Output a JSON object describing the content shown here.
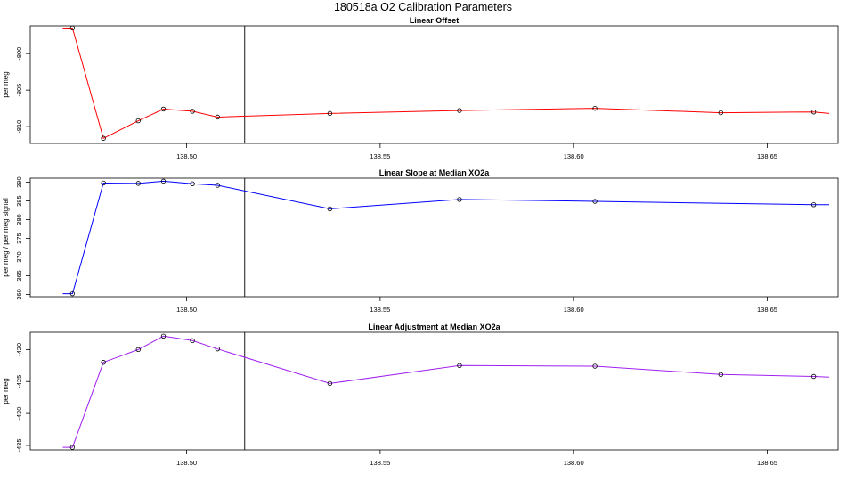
{
  "title": "180518a   O2 Calibration Parameters",
  "chart_data": [
    {
      "type": "line",
      "title": "Linear Offset",
      "ylabel": "per meg",
      "xlabel": "",
      "color": "#ff0000",
      "xlim": [
        138.4596,
        138.6683
      ],
      "ylim": [
        -812.3,
        -796.2
      ],
      "x_ticks": [
        138.5,
        138.55,
        138.6,
        138.65
      ],
      "x_tick_labels": [
        "138.50",
        "138.55",
        "138.60",
        "138.65"
      ],
      "y_ticks": [
        -800,
        -805,
        -810
      ],
      "y_tick_labels": [
        "-800",
        "-805",
        "-810"
      ],
      "vline_x": 138.515,
      "line_start": {
        "x": 138.468,
        "y": -796.5
      },
      "line_end": {
        "x": 138.666,
        "y": -808.2
      },
      "points": [
        {
          "x": 138.4705,
          "y": -796.5
        },
        {
          "x": 138.4785,
          "y": -811.6
        },
        {
          "x": 138.4875,
          "y": -809.2
        },
        {
          "x": 138.494,
          "y": -807.6
        },
        {
          "x": 138.5015,
          "y": -807.9
        },
        {
          "x": 138.508,
          "y": -808.7
        },
        {
          "x": 138.537,
          "y": -808.2
        },
        {
          "x": 138.5705,
          "y": -807.8
        },
        {
          "x": 138.6055,
          "y": -807.5
        },
        {
          "x": 138.638,
          "y": -808.1
        },
        {
          "x": 138.662,
          "y": -808.0
        }
      ]
    },
    {
      "type": "line",
      "title": "Linear Slope at Median XO2a",
      "ylabel": "per meg / per meg signal",
      "xlabel": "",
      "color": "#0000ff",
      "xlim": [
        138.4596,
        138.6683
      ],
      "ylim": [
        359.4,
        391.1
      ],
      "x_ticks": [
        138.5,
        138.55,
        138.6,
        138.65
      ],
      "x_tick_labels": [
        "138.50",
        "138.55",
        "138.60",
        "138.65"
      ],
      "y_ticks": [
        360,
        365,
        370,
        375,
        380,
        385,
        390
      ],
      "y_tick_labels": [
        "360",
        "365",
        "370",
        "375",
        "380",
        "385",
        "390"
      ],
      "vline_x": 138.515,
      "line_start": {
        "x": 138.468,
        "y": 360.2
      },
      "line_end": {
        "x": 138.666,
        "y": 384.0
      },
      "points": [
        {
          "x": 138.4705,
          "y": 360.2
        },
        {
          "x": 138.4785,
          "y": 389.8
        },
        {
          "x": 138.4875,
          "y": 389.7
        },
        {
          "x": 138.494,
          "y": 390.3
        },
        {
          "x": 138.5015,
          "y": 389.6
        },
        {
          "x": 138.508,
          "y": 389.2
        },
        {
          "x": 138.537,
          "y": 382.9
        },
        {
          "x": 138.5705,
          "y": 385.4
        },
        {
          "x": 138.6055,
          "y": 384.9
        },
        {
          "x": 138.662,
          "y": 384.0
        }
      ]
    },
    {
      "type": "line",
      "title": "Linear Adjustment at Median XO2a",
      "ylabel": "per meg",
      "xlabel": "",
      "color": "#a020f0",
      "xlim": [
        138.4596,
        138.6683
      ],
      "ylim": [
        -435.7,
        -417.3
      ],
      "x_ticks": [
        138.5,
        138.55,
        138.6,
        138.65
      ],
      "x_tick_labels": [
        "138.50",
        "138.55",
        "138.60",
        "138.65"
      ],
      "y_ticks": [
        -420,
        -425,
        -430,
        -435
      ],
      "y_tick_labels": [
        "-420",
        "-425",
        "-430",
        "-435"
      ],
      "vline_x": 138.515,
      "line_start": {
        "x": 138.468,
        "y": -435.3
      },
      "line_end": {
        "x": 138.666,
        "y": -424.3
      },
      "points": [
        {
          "x": 138.4705,
          "y": -435.3
        },
        {
          "x": 138.4785,
          "y": -422.0
        },
        {
          "x": 138.4875,
          "y": -420.0
        },
        {
          "x": 138.494,
          "y": -417.9
        },
        {
          "x": 138.5015,
          "y": -418.6
        },
        {
          "x": 138.508,
          "y": -419.9
        },
        {
          "x": 138.537,
          "y": -425.3
        },
        {
          "x": 138.5705,
          "y": -422.5
        },
        {
          "x": 138.6055,
          "y": -422.6
        },
        {
          "x": 138.638,
          "y": -423.9
        },
        {
          "x": 138.662,
          "y": -424.2
        }
      ]
    }
  ]
}
